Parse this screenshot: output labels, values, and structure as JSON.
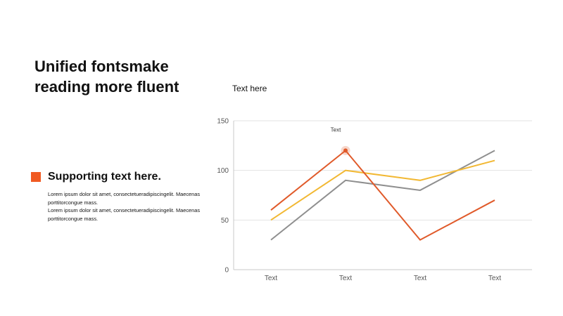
{
  "headline": "Unified fontsmake reading more fluent",
  "supporting": {
    "title": "Supporting text here.",
    "paragraphs": [
      "Lorem ipsum dolor sit amet, consectetueradipiscingelit. Maecenas porttitorcongue mass.",
      "Lorem ipsum dolor sit amet, consectetueradipiscingelit. Maecenas porttitorcongue mass."
    ]
  },
  "colors": {
    "accent": "#f05a22",
    "grid": "#e2e2e2",
    "axis": "#c8c8c8"
  },
  "chart_data": {
    "type": "line",
    "title": "Text here",
    "categories": [
      "Text",
      "Text",
      "Text",
      "Text"
    ],
    "ylim": [
      0,
      150
    ],
    "yticks": [
      0,
      50,
      100,
      150
    ],
    "grid": true,
    "legend": "none",
    "series": [
      {
        "color": "#e05a2a",
        "values": [
          60,
          120,
          30,
          70
        ]
      },
      {
        "color": "#f2b833",
        "values": [
          50,
          100,
          90,
          110
        ]
      },
      {
        "color": "#8f8f8f",
        "values": [
          30,
          90,
          80,
          120
        ]
      }
    ],
    "annotations": [
      {
        "text": "Text",
        "series": 0,
        "point": 1
      }
    ]
  }
}
